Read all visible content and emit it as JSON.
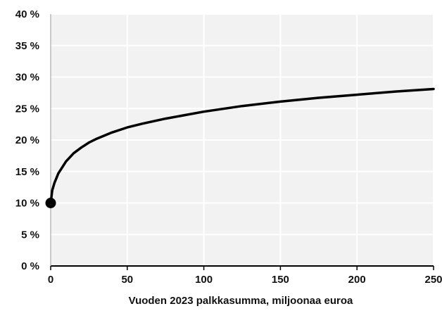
{
  "chart_data": {
    "type": "line",
    "title": "",
    "xlabel": "Vuoden 2023 palkkasumma, miljoonaa euroa",
    "ylabel": "",
    "xlim": [
      0,
      250
    ],
    "ylim": [
      0,
      40
    ],
    "xticks": [
      0,
      50,
      100,
      150,
      200,
      250
    ],
    "xtick_labels": [
      "0",
      "50",
      "100",
      "150",
      "200",
      "250"
    ],
    "yticks": [
      0,
      5,
      10,
      15,
      20,
      25,
      30,
      35,
      40
    ],
    "ytick_labels": [
      "0 %",
      "5 %",
      "10 %",
      "15 %",
      "20 %",
      "25 %",
      "30 %",
      "35 %",
      "40 %"
    ],
    "grid": true,
    "legend": "none",
    "colors": {
      "background": "#f2f2f2",
      "grid": "#ffffff",
      "line": "#000000",
      "text": "#111111"
    },
    "series": [
      {
        "x": [
          0,
          1,
          2.5,
          5,
          10,
          15,
          20,
          25,
          30,
          40,
          50,
          60,
          75,
          100,
          125,
          150,
          175,
          200,
          225,
          250
        ],
        "y": [
          10.0,
          12.0,
          13.2,
          14.7,
          16.6,
          17.9,
          18.8,
          19.6,
          20.2,
          21.2,
          22.0,
          22.6,
          23.4,
          24.5,
          25.4,
          26.1,
          26.7,
          27.2,
          27.7,
          28.1
        ]
      }
    ],
    "markers": [
      {
        "x": 0,
        "y": 10
      }
    ]
  }
}
